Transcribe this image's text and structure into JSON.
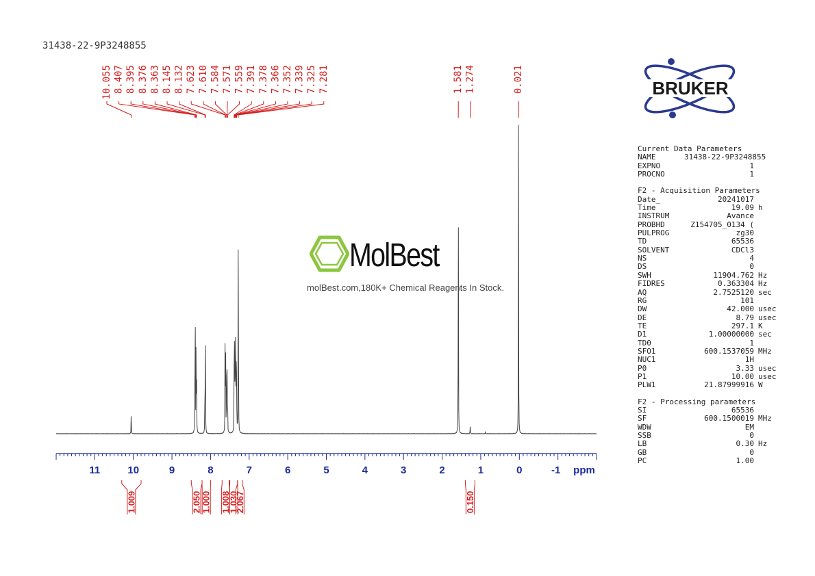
{
  "sample_id": "31438-22-9P3248855",
  "watermark": {
    "name": "MolBest",
    "tagline": "molBest.com,180K+ Chemical Reagents In Stock."
  },
  "logo": {
    "text": "BRUKER",
    "color": "#2b3a8f"
  },
  "colors": {
    "peak_labels": "#d42020",
    "spectrum": "#444444",
    "axis": "#1a2a9a",
    "integrals": "#d42020"
  },
  "parameters": {
    "sections": [
      {
        "title": "Current Data Parameters",
        "rows": [
          {
            "key": "NAME",
            "value": "31438-22-9P3248855",
            "unit": ""
          },
          {
            "key": "EXPNO",
            "value": "1",
            "unit": ""
          },
          {
            "key": "PROCNO",
            "value": "1",
            "unit": ""
          }
        ]
      },
      {
        "title": "F2 - Acquisition Parameters",
        "rows": [
          {
            "key": "Date_",
            "value": "20241017",
            "unit": ""
          },
          {
            "key": "Time",
            "value": "19.09",
            "unit": "h"
          },
          {
            "key": "INSTRUM",
            "value": "Avance",
            "unit": ""
          },
          {
            "key": "PROBHD",
            "value": "Z154705_0134 (",
            "unit": ""
          },
          {
            "key": "PULPROG",
            "value": "zg30",
            "unit": ""
          },
          {
            "key": "TD",
            "value": "65536",
            "unit": ""
          },
          {
            "key": "SOLVENT",
            "value": "CDCl3",
            "unit": ""
          },
          {
            "key": "NS",
            "value": "4",
            "unit": ""
          },
          {
            "key": "DS",
            "value": "0",
            "unit": ""
          },
          {
            "key": "SWH",
            "value": "11904.762",
            "unit": "Hz"
          },
          {
            "key": "FIDRES",
            "value": "0.363304",
            "unit": "Hz"
          },
          {
            "key": "AQ",
            "value": "2.7525120",
            "unit": "sec"
          },
          {
            "key": "RG",
            "value": "101",
            "unit": ""
          },
          {
            "key": "DW",
            "value": "42.000",
            "unit": "usec"
          },
          {
            "key": "DE",
            "value": "8.79",
            "unit": "usec"
          },
          {
            "key": "TE",
            "value": "297.1",
            "unit": "K"
          },
          {
            "key": "D1",
            "value": "1.00000000",
            "unit": "sec"
          },
          {
            "key": "TD0",
            "value": "1",
            "unit": ""
          },
          {
            "key": "SFO1",
            "value": "600.1537059",
            "unit": "MHz"
          },
          {
            "key": "NUC1",
            "value": "1H",
            "unit": ""
          },
          {
            "key": "P0",
            "value": "3.33",
            "unit": "usec"
          },
          {
            "key": "P1",
            "value": "10.00",
            "unit": "usec"
          },
          {
            "key": "PLW1",
            "value": "21.87999916",
            "unit": "W"
          }
        ]
      },
      {
        "title": "F2 - Processing parameters",
        "rows": [
          {
            "key": "SI",
            "value": "65536",
            "unit": ""
          },
          {
            "key": "SF",
            "value": "600.1500019",
            "unit": "MHz"
          },
          {
            "key": "WDW",
            "value": "EM",
            "unit": ""
          },
          {
            "key": "SSB",
            "value": "0",
            "unit": ""
          },
          {
            "key": "LB",
            "value": "0.30",
            "unit": "Hz"
          },
          {
            "key": "GB",
            "value": "0",
            "unit": ""
          },
          {
            "key": "PC",
            "value": "1.00",
            "unit": ""
          }
        ]
      }
    ]
  },
  "chart_data": {
    "type": "line",
    "xlabel": "ppm",
    "xlim": [
      12.0,
      -2.0
    ],
    "x_reversed": true,
    "x_ticks": [
      11,
      10,
      9,
      8,
      7,
      6,
      5,
      4,
      3,
      2,
      1,
      0,
      -1
    ],
    "x_tick_labels": [
      "11",
      "10",
      "9",
      "8",
      "7",
      "6",
      "5",
      "4",
      "3",
      "2",
      "1",
      "0",
      "-1"
    ],
    "peak_labels": [
      "10.055",
      "8.407",
      "8.395",
      "8.376",
      "8.363",
      "8.145",
      "8.132",
      "7.623",
      "7.610",
      "7.584",
      "7.571",
      "7.559",
      "7.391",
      "7.378",
      "7.366",
      "7.352",
      "7.339",
      "7.325",
      "7.281",
      "1.581",
      "1.274",
      "0.021"
    ],
    "peaks": [
      {
        "ppm": 10.055,
        "height": 0.22
      },
      {
        "ppm": 8.407,
        "height": 0.74
      },
      {
        "ppm": 8.395,
        "height": 0.76
      },
      {
        "ppm": 8.376,
        "height": 0.75
      },
      {
        "ppm": 8.363,
        "height": 0.73
      },
      {
        "ppm": 8.145,
        "height": 0.66
      },
      {
        "ppm": 8.132,
        "height": 0.67
      },
      {
        "ppm": 7.623,
        "height": 0.92
      },
      {
        "ppm": 7.61,
        "height": 0.94
      },
      {
        "ppm": 7.584,
        "height": 0.66
      },
      {
        "ppm": 7.571,
        "height": 0.52
      },
      {
        "ppm": 7.559,
        "height": 0.4
      },
      {
        "ppm": 7.391,
        "height": 0.7
      },
      {
        "ppm": 7.378,
        "height": 0.86
      },
      {
        "ppm": 7.366,
        "height": 0.72
      },
      {
        "ppm": 7.352,
        "height": 0.84
      },
      {
        "ppm": 7.339,
        "height": 0.8
      },
      {
        "ppm": 7.325,
        "height": 0.65
      },
      {
        "ppm": 7.281,
        "height": 2.5
      },
      {
        "ppm": 1.581,
        "height": 2.42
      },
      {
        "ppm": 1.274,
        "height": 0.07
      },
      {
        "ppm": 0.88,
        "height": 0.015
      },
      {
        "ppm": 0.021,
        "height": 2.44
      }
    ],
    "integrals": [
      {
        "from": 10.3,
        "to": 9.8,
        "value": "1.009"
      },
      {
        "from": 8.5,
        "to": 8.22,
        "value": "2.050"
      },
      {
        "from": 8.22,
        "to": 8.0,
        "value": "1.000"
      },
      {
        "from": 7.7,
        "to": 7.52,
        "value": "1.008"
      },
      {
        "from": 7.5,
        "to": 7.3,
        "value": "1.030"
      },
      {
        "from": 7.3,
        "to": 7.18,
        "value": "2.067"
      },
      {
        "from": 1.4,
        "to": 1.15,
        "value": "0.150"
      }
    ]
  }
}
